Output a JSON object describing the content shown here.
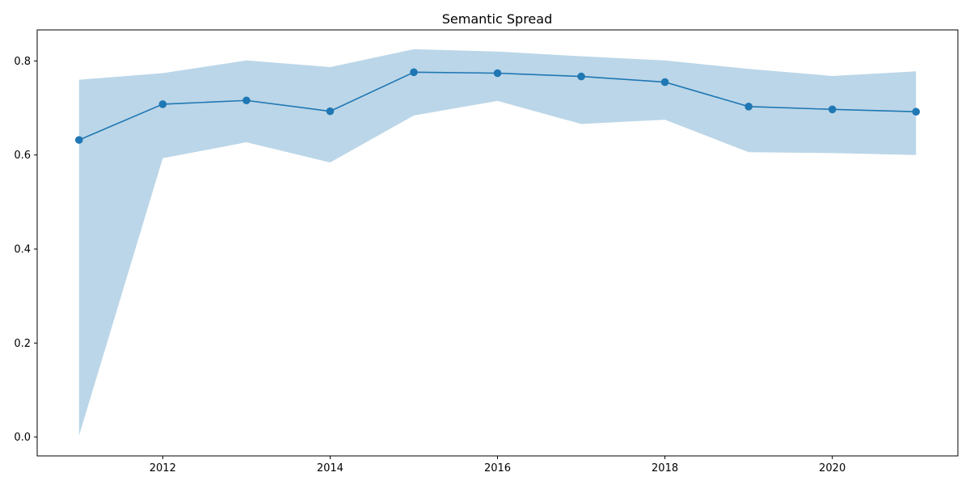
{
  "chart_data": {
    "type": "line",
    "title": "Semantic Spread",
    "xlabel": "",
    "ylabel": "",
    "x": [
      2011,
      2012,
      2013,
      2014,
      2015,
      2016,
      2017,
      2018,
      2019,
      2020,
      2021
    ],
    "series": [
      {
        "values": [
          0.632,
          0.708,
          0.716,
          0.693,
          0.776,
          0.774,
          0.767,
          0.755,
          0.703,
          0.697,
          0.692
        ],
        "band_lower": [
          0.003,
          0.593,
          0.627,
          0.584,
          0.684,
          0.715,
          0.666,
          0.675,
          0.606,
          0.604,
          0.6
        ],
        "band_upper": [
          0.76,
          0.774,
          0.801,
          0.787,
          0.825,
          0.82,
          0.81,
          0.801,
          0.783,
          0.768,
          0.778
        ]
      }
    ],
    "xlim": [
      2010.5,
      2021.5
    ],
    "ylim": [
      -0.04,
      0.866
    ],
    "xticks": [
      2012,
      2014,
      2016,
      2018,
      2020
    ],
    "yticks": [
      0.0,
      0.2,
      0.4,
      0.6,
      0.8
    ],
    "grid": false,
    "legend": false,
    "colors": {
      "line": "#1f77b4",
      "band": "#1f77b4",
      "band_opacity": 0.3
    }
  }
}
